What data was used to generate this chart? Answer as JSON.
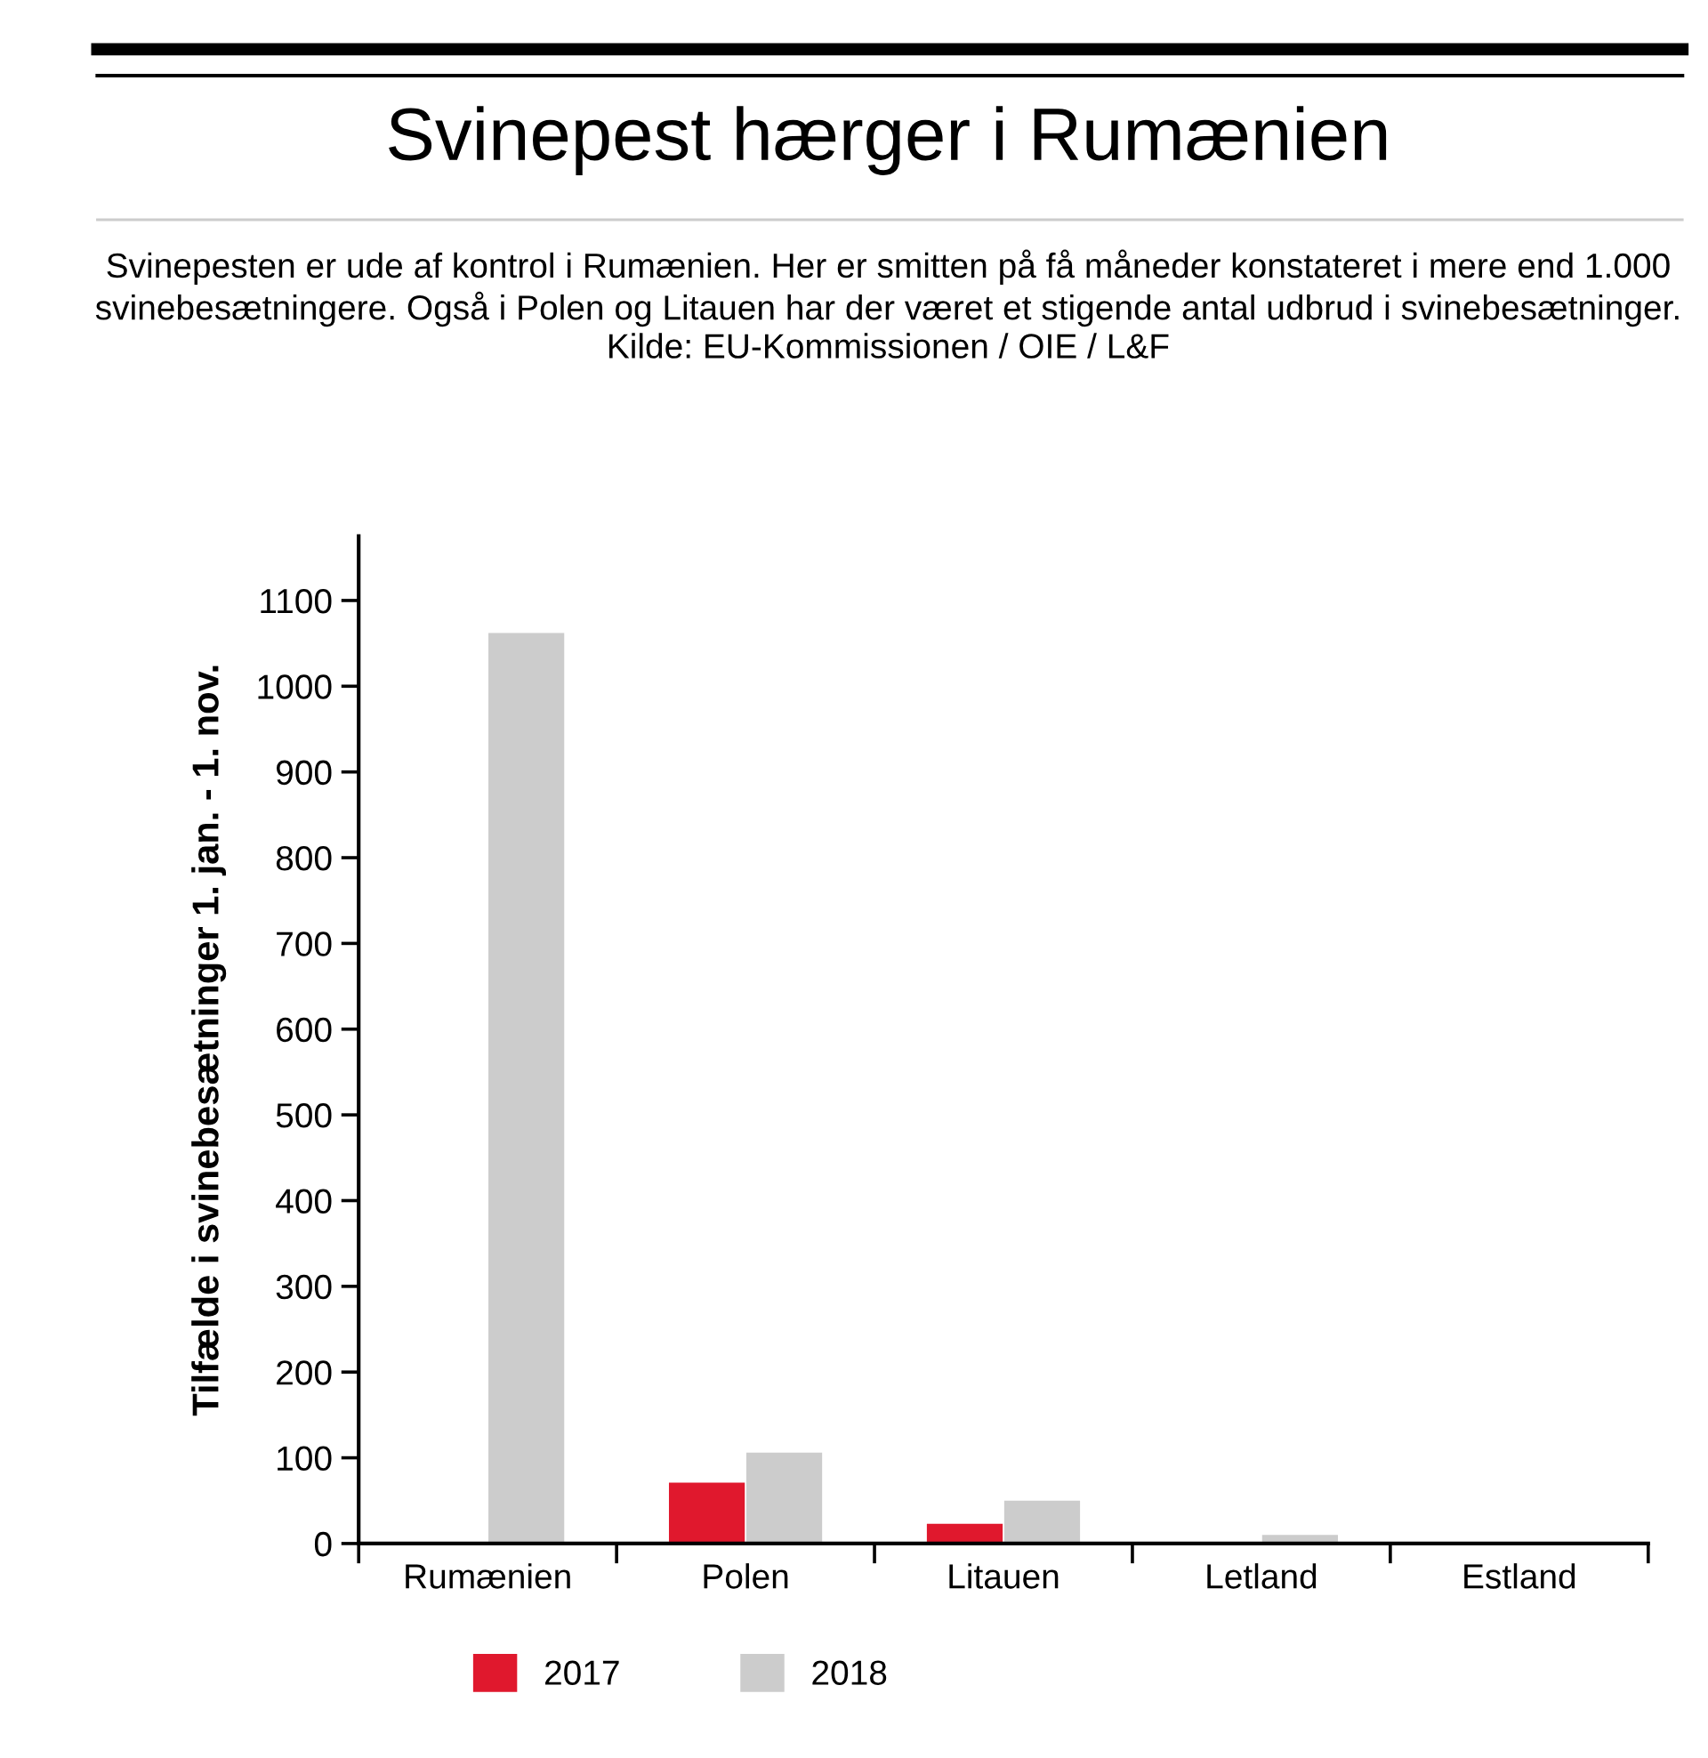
{
  "chart_data": {
    "type": "bar",
    "title": "Svinepest hærger i Rumænien",
    "subtitle": "Svinepesten er ude af kontrol i Rumænien. Her er smitten på få måneder konstateret i mere end 1.000 svinebesætningere. Også i Polen og Litauen har der været et stigende antal udbrud i svinebesætninger. Kilde: EU-Kommissionen / OIE / L&F",
    "ylabel": "Tilfælde i svinebesætninger 1. jan. - 1. nov.",
    "categories": [
      "Rumænien",
      "Polen",
      "Litauen",
      "Letland",
      "Estland"
    ],
    "series": [
      {
        "name": "2017",
        "color": "#e0182d",
        "values": [
          0,
          71,
          23,
          0,
          0
        ]
      },
      {
        "name": "2018",
        "color": "#cccccc",
        "values": [
          1062,
          106,
          50,
          10,
          0
        ]
      }
    ],
    "ylim": [
      0,
      1175
    ],
    "yticks": [
      0,
      100,
      200,
      300,
      400,
      500,
      600,
      700,
      800,
      900,
      1000,
      1100
    ],
    "grid": false,
    "legend": "bottom"
  }
}
